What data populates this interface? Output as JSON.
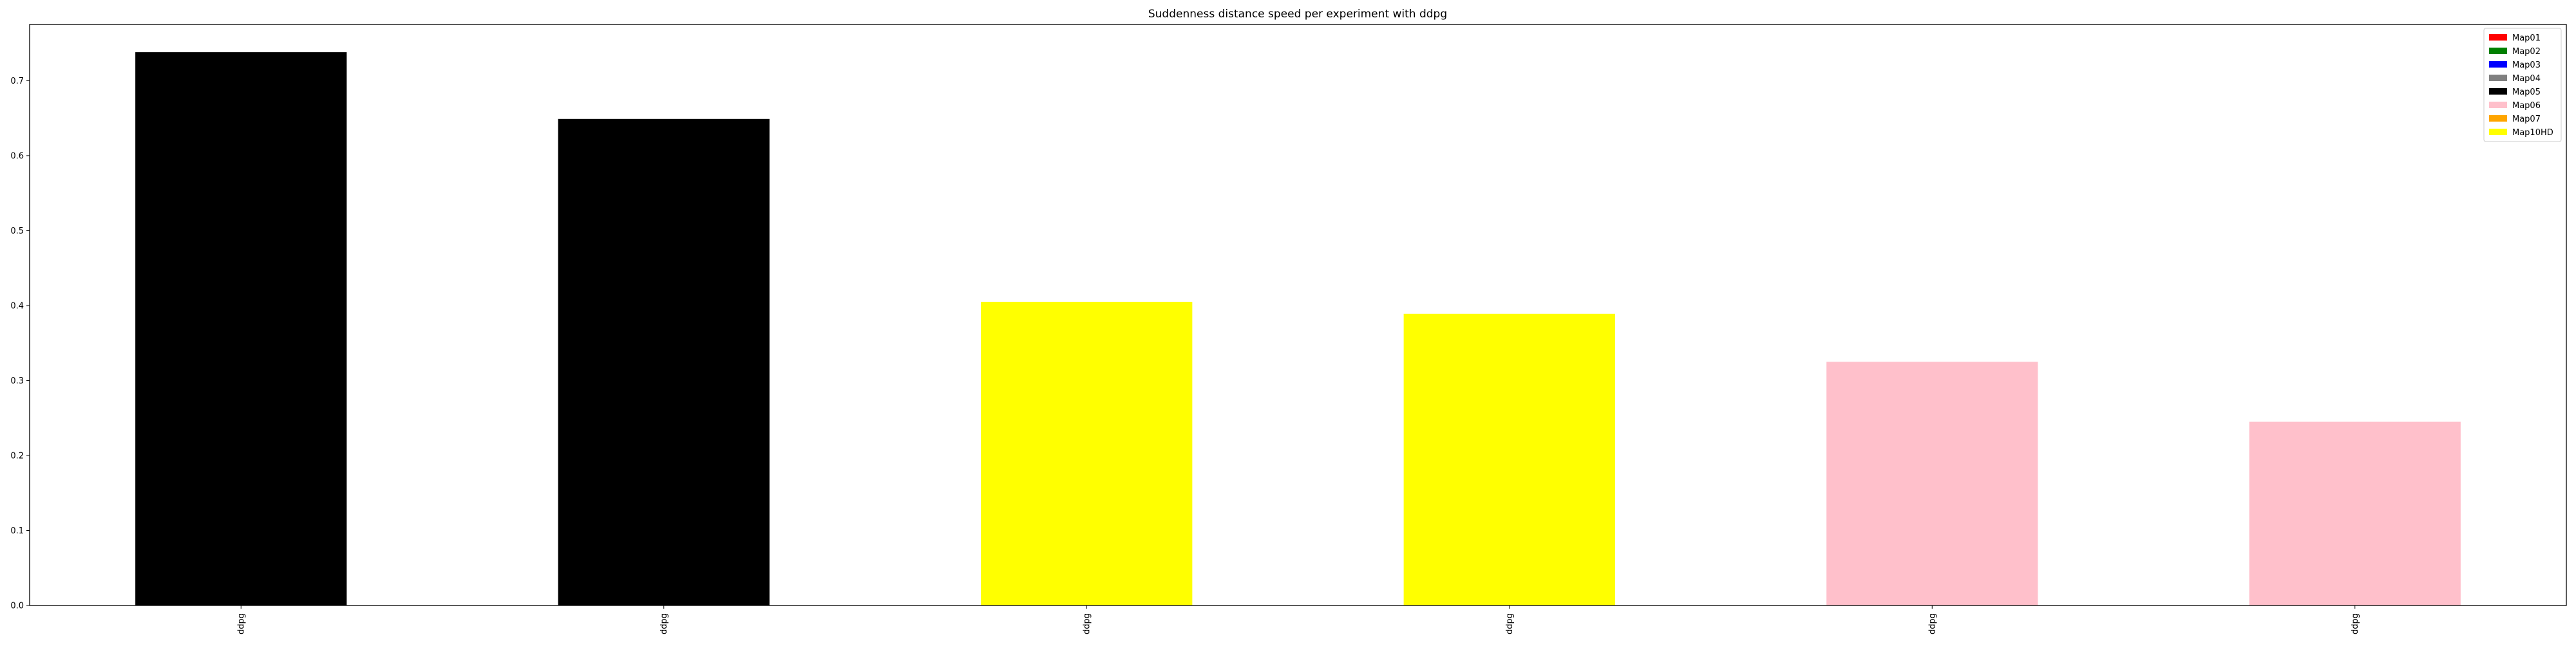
{
  "chart_data": {
    "type": "bar",
    "title": "Suddenness distance speed per experiment with ddpg",
    "xlabel": "",
    "ylabel": "",
    "categories": [
      "ddpg",
      "ddpg",
      "ddpg",
      "ddpg",
      "ddpg",
      "ddpg"
    ],
    "values": [
      0.738,
      0.649,
      0.405,
      0.389,
      0.325,
      0.245
    ],
    "bar_series": [
      "Map05",
      "Map05",
      "Map10HD",
      "Map10HD",
      "Map06",
      "Map06"
    ],
    "ylim": [
      0,
      0.775
    ],
    "yticks": [
      0.0,
      0.1,
      0.2,
      0.3,
      0.4,
      0.5,
      0.6,
      0.7
    ],
    "ytick_labels": [
      "0.0",
      "0.1",
      "0.2",
      "0.3",
      "0.4",
      "0.5",
      "0.6",
      "0.7"
    ],
    "grid": false,
    "legend_position": "top-right",
    "legend": [
      {
        "name": "Map01",
        "color": "#ff0000"
      },
      {
        "name": "Map02",
        "color": "#008000"
      },
      {
        "name": "Map03",
        "color": "#0000ff"
      },
      {
        "name": "Map04",
        "color": "#808080"
      },
      {
        "name": "Map05",
        "color": "#000000"
      },
      {
        "name": "Map06",
        "color": "#ffc0cb"
      },
      {
        "name": "Map07",
        "color": "#ffa500"
      },
      {
        "name": "Map10HD",
        "color": "#ffff00"
      }
    ]
  }
}
